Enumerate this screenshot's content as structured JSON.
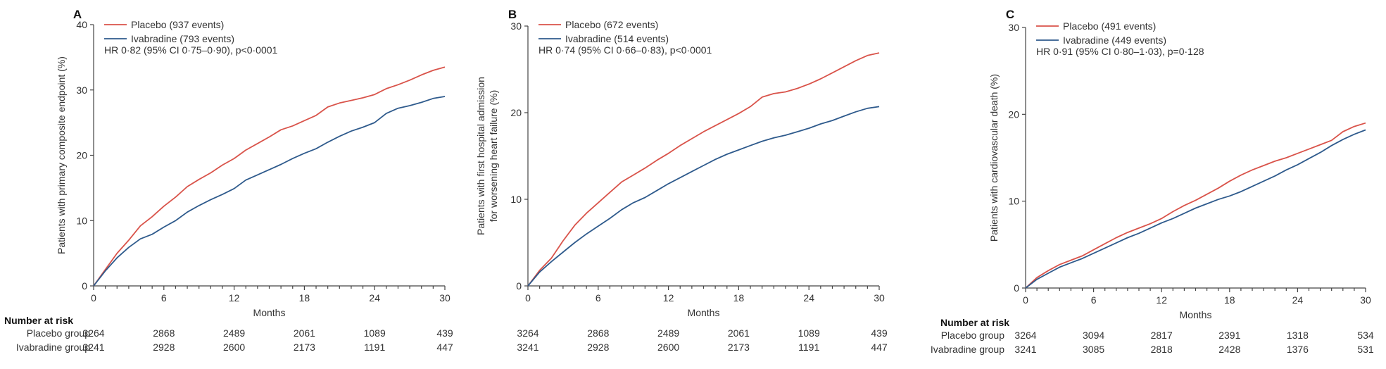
{
  "chart_data": [
    {
      "type": "line",
      "panel_label": "A",
      "xlabel": "Months",
      "ylabel": "Patients with primary composite endpoint (%)",
      "ylim": [
        0,
        40
      ],
      "xlim": [
        0,
        30
      ],
      "yticks": [
        0,
        10,
        20,
        30,
        40
      ],
      "xticks": [
        0,
        6,
        12,
        18,
        24,
        30
      ],
      "legend_position": "top-left",
      "annotation": "HR 0·82 (95% CI 0·75–0·90), p<0·0001",
      "series": [
        {
          "name": "Placebo (937 events)",
          "color": "#d9534a",
          "x": [
            0,
            1,
            2,
            3,
            4,
            5,
            6,
            7,
            8,
            9,
            10,
            11,
            12,
            13,
            14,
            15,
            16,
            17,
            18,
            19,
            20,
            21,
            22,
            23,
            24,
            25,
            26,
            27,
            28,
            29,
            30
          ],
          "y": [
            0,
            2.5,
            5,
            7,
            9.2,
            10.6,
            12.2,
            13.6,
            15.2,
            16.3,
            17.3,
            18.5,
            19.5,
            20.8,
            21.8,
            22.8,
            23.9,
            24.5,
            25.3,
            26.1,
            27.4,
            28,
            28.4,
            28.8,
            29.3,
            30.2,
            30.8,
            31.5,
            32.3,
            33,
            33.5
          ]
        },
        {
          "name": "Ivabradine (793 events)",
          "color": "#2e5a8c",
          "x": [
            0,
            1,
            2,
            3,
            4,
            5,
            6,
            7,
            8,
            9,
            10,
            11,
            12,
            13,
            14,
            15,
            16,
            17,
            18,
            19,
            20,
            21,
            22,
            23,
            24,
            25,
            26,
            27,
            28,
            29,
            30
          ],
          "y": [
            0,
            2.3,
            4.3,
            5.9,
            7.2,
            7.9,
            9,
            10,
            11.3,
            12.3,
            13.2,
            14,
            14.9,
            16.2,
            17,
            17.8,
            18.6,
            19.5,
            20.3,
            21,
            22,
            22.9,
            23.7,
            24.3,
            25,
            26.4,
            27.2,
            27.6,
            28.1,
            28.7,
            29
          ]
        }
      ]
    },
    {
      "type": "line",
      "panel_label": "B",
      "xlabel": "Months",
      "ylabel_lines": [
        "Patients with first hospital admission",
        "for worsening heart failure (%)"
      ],
      "ylim": [
        0,
        30
      ],
      "xlim": [
        0,
        30
      ],
      "yticks": [
        0,
        10,
        20,
        30
      ],
      "xticks": [
        0,
        6,
        12,
        18,
        24,
        30
      ],
      "legend_position": "top-left",
      "annotation": "HR 0·74 (95% CI 0·66–0·83), p<0·0001",
      "series": [
        {
          "name": "Placebo (672 events)",
          "color": "#d9534a",
          "x": [
            0,
            1,
            2,
            3,
            4,
            5,
            6,
            7,
            8,
            9,
            10,
            11,
            12,
            13,
            14,
            15,
            16,
            17,
            18,
            19,
            20,
            21,
            22,
            23,
            24,
            25,
            26,
            27,
            28,
            29,
            30
          ],
          "y": [
            0,
            1.8,
            3.2,
            5.2,
            7,
            8.4,
            9.6,
            10.8,
            12,
            12.8,
            13.6,
            14.5,
            15.3,
            16.2,
            17,
            17.8,
            18.5,
            19.2,
            19.9,
            20.7,
            21.8,
            22.2,
            22.4,
            22.8,
            23.3,
            23.9,
            24.6,
            25.3,
            26,
            26.6,
            26.9
          ]
        },
        {
          "name": "Ivabradine (514 events)",
          "color": "#2e5a8c",
          "x": [
            0,
            1,
            2,
            3,
            4,
            5,
            6,
            7,
            8,
            9,
            10,
            11,
            12,
            13,
            14,
            15,
            16,
            17,
            18,
            19,
            20,
            21,
            22,
            23,
            24,
            25,
            26,
            27,
            28,
            29,
            30
          ],
          "y": [
            0,
            1.6,
            2.8,
            3.9,
            5,
            6,
            6.9,
            7.8,
            8.8,
            9.6,
            10.2,
            11,
            11.8,
            12.5,
            13.2,
            13.9,
            14.6,
            15.2,
            15.7,
            16.2,
            16.7,
            17.1,
            17.4,
            17.8,
            18.2,
            18.7,
            19.1,
            19.6,
            20.1,
            20.5,
            20.7
          ]
        }
      ]
    },
    {
      "type": "line",
      "panel_label": "C",
      "xlabel": "Months",
      "ylabel": "Patients with cardiovascular death (%)",
      "ylim": [
        0,
        30
      ],
      "xlim": [
        0,
        30
      ],
      "yticks": [
        0,
        10,
        20,
        30
      ],
      "xticks": [
        0,
        6,
        12,
        18,
        24,
        30
      ],
      "legend_position": "top-left",
      "annotation": "HR 0·91 (95% CI 0·80–1·03), p=0·128",
      "series": [
        {
          "name": "Placebo (491 events)",
          "color": "#d9534a",
          "x": [
            0,
            1,
            2,
            3,
            4,
            5,
            6,
            7,
            8,
            9,
            10,
            11,
            12,
            13,
            14,
            15,
            16,
            17,
            18,
            19,
            20,
            21,
            22,
            23,
            24,
            25,
            26,
            27,
            28,
            29,
            30
          ],
          "y": [
            0,
            1.2,
            2,
            2.7,
            3.2,
            3.7,
            4.4,
            5.1,
            5.8,
            6.4,
            6.9,
            7.4,
            8,
            8.8,
            9.5,
            10.1,
            10.8,
            11.5,
            12.3,
            13,
            13.6,
            14.1,
            14.6,
            15,
            15.5,
            16,
            16.5,
            17,
            18,
            18.6,
            19
          ]
        },
        {
          "name": "Ivabradine (449 events)",
          "color": "#2e5a8c",
          "x": [
            0,
            1,
            2,
            3,
            4,
            5,
            6,
            7,
            8,
            9,
            10,
            11,
            12,
            13,
            14,
            15,
            16,
            17,
            18,
            19,
            20,
            21,
            22,
            23,
            24,
            25,
            26,
            27,
            28,
            29,
            30
          ],
          "y": [
            0,
            1,
            1.7,
            2.4,
            2.9,
            3.4,
            4,
            4.6,
            5.2,
            5.8,
            6.3,
            6.9,
            7.5,
            8,
            8.6,
            9.2,
            9.7,
            10.2,
            10.6,
            11.1,
            11.7,
            12.3,
            12.9,
            13.6,
            14.2,
            14.9,
            15.6,
            16.4,
            17.1,
            17.7,
            18.2
          ]
        }
      ]
    }
  ],
  "risk_tables": [
    {
      "heading": "Number at risk",
      "rows": [
        {
          "label": "Placebo group",
          "values": [
            "3264",
            "2868",
            "2489",
            "2061",
            "1089",
            "439"
          ]
        },
        {
          "label": "Ivabradine group",
          "values": [
            "3241",
            "2928",
            "2600",
            "2173",
            "1191",
            "447"
          ]
        }
      ]
    },
    {
      "heading": "",
      "rows": [
        {
          "label": "",
          "values": [
            "3264",
            "2868",
            "2489",
            "2061",
            "1089",
            "439"
          ]
        },
        {
          "label": "",
          "values": [
            "3241",
            "2928",
            "2600",
            "2173",
            "1191",
            "447"
          ]
        }
      ]
    },
    {
      "heading": "Number at risk",
      "rows": [
        {
          "label": "Placebo group",
          "values": [
            "3264",
            "3094",
            "2817",
            "2391",
            "1318",
            "534"
          ]
        },
        {
          "label": "Ivabradine group",
          "values": [
            "3241",
            "3085",
            "2818",
            "2428",
            "1376",
            "531"
          ]
        }
      ]
    }
  ]
}
